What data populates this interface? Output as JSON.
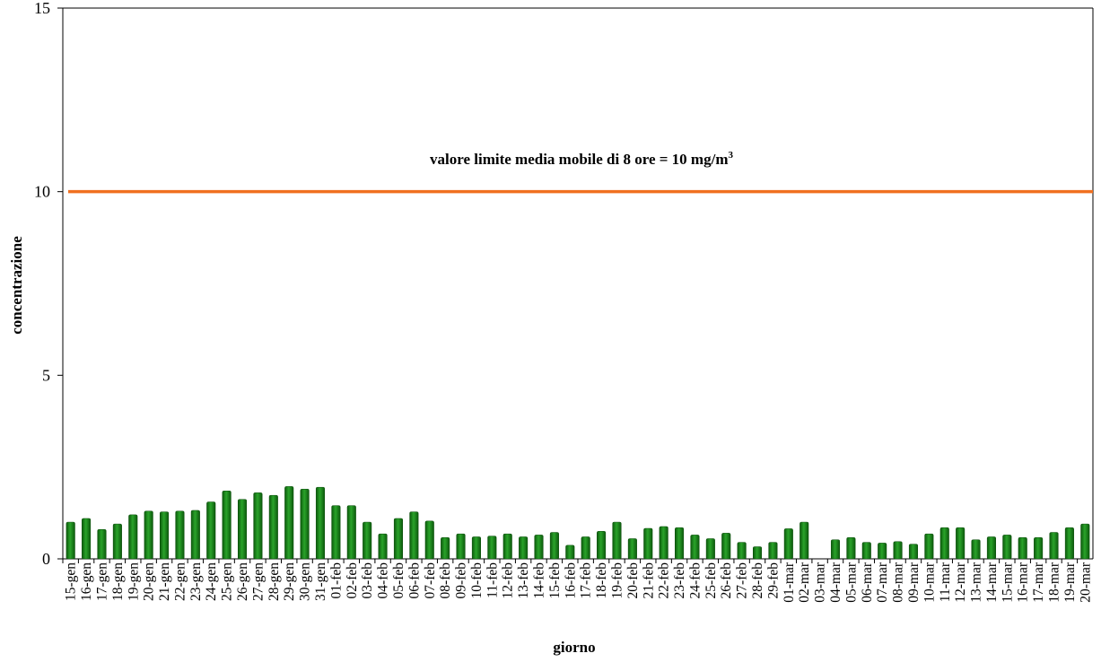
{
  "chart_data": {
    "type": "bar",
    "title": "",
    "xlabel": "giorno",
    "ylabel": "concentrazione",
    "ylim": [
      0,
      15
    ],
    "yticks": [
      "0",
      "5",
      "10",
      "15"
    ],
    "grid": false,
    "legend": "none",
    "categories": [
      "15-gen",
      "16-gen",
      "17-gen",
      "18-gen",
      "19-gen",
      "20-gen",
      "21-gen",
      "22-gen",
      "23-gen",
      "24-gen",
      "25-gen",
      "26-gen",
      "27-gen",
      "28-gen",
      "29-gen",
      "30-gen",
      "31-gen",
      "01-feb",
      "02-feb",
      "03-feb",
      "04-feb",
      "05-feb",
      "06-feb",
      "07-feb",
      "08-feb",
      "09-feb",
      "10-feb",
      "11-feb",
      "12-feb",
      "13-feb",
      "14-feb",
      "15-feb",
      "16-feb",
      "17-feb",
      "18-feb",
      "19-feb",
      "20-feb",
      "21-feb",
      "22-feb",
      "23-feb",
      "24-feb",
      "25-feb",
      "26-feb",
      "27-feb",
      "28-feb",
      "29-feb",
      "01-mar",
      "02-mar",
      "03-mar",
      "04-mar",
      "05-mar",
      "06-mar",
      "07-mar",
      "08-mar",
      "09-mar",
      "10-mar",
      "11-mar",
      "12-mar",
      "13-mar",
      "14-mar",
      "15-mar",
      "16-mar",
      "17-mar",
      "18-mar",
      "19-mar",
      "20-mar"
    ],
    "values": [
      1.0,
      1.1,
      0.8,
      0.95,
      1.2,
      1.3,
      1.28,
      1.3,
      1.32,
      1.55,
      1.85,
      1.62,
      1.8,
      1.73,
      1.97,
      1.9,
      1.95,
      1.45,
      1.45,
      1.0,
      0.68,
      1.1,
      1.28,
      1.03,
      0.58,
      0.68,
      0.6,
      0.62,
      0.68,
      0.6,
      0.65,
      0.72,
      0.37,
      0.6,
      0.75,
      1.0,
      0.55,
      0.83,
      0.88,
      0.85,
      0.65,
      0.55,
      0.7,
      0.45,
      0.33,
      0.45,
      0.82,
      1.0,
      null,
      0.52,
      0.58,
      0.45,
      0.43,
      0.47,
      0.4,
      0.68,
      0.85,
      0.85,
      0.52,
      0.6,
      0.65,
      0.58,
      0.58,
      0.72,
      0.85,
      0.95
    ],
    "bar_color": "#1f8a1f",
    "limit_line": {
      "value": 10,
      "color": "#f07020",
      "label": "valore limite media mobile di 8 ore = 10 mg/m",
      "label_sup": "3"
    }
  }
}
